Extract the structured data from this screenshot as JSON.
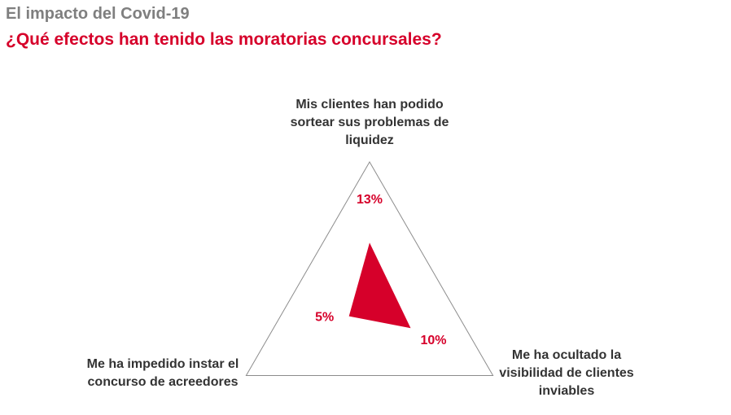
{
  "header": {
    "title": "El impacto del Covid-19",
    "subtitle": "¿Qué efectos han tenido las moratorias concursales?"
  },
  "chart_data": {
    "type": "radar",
    "title": "",
    "axes": [
      "Mis clientes han podido\nsortear sus problemas de\nliquidez",
      "Me ha ocultado la\nvisibilidad de clientes\ninviables",
      "Me ha impedido instar el\nconcurso de acreedores"
    ],
    "series": [
      {
        "values": [
          13,
          10,
          5
        ],
        "value_labels": [
          "13%",
          "10%",
          "5%"
        ]
      }
    ],
    "r_max": 30,
    "grid": false,
    "legend": "none",
    "colors": {
      "fill": "#d6002a",
      "label": "#d6002a",
      "frame": "#8c8c8c"
    }
  }
}
